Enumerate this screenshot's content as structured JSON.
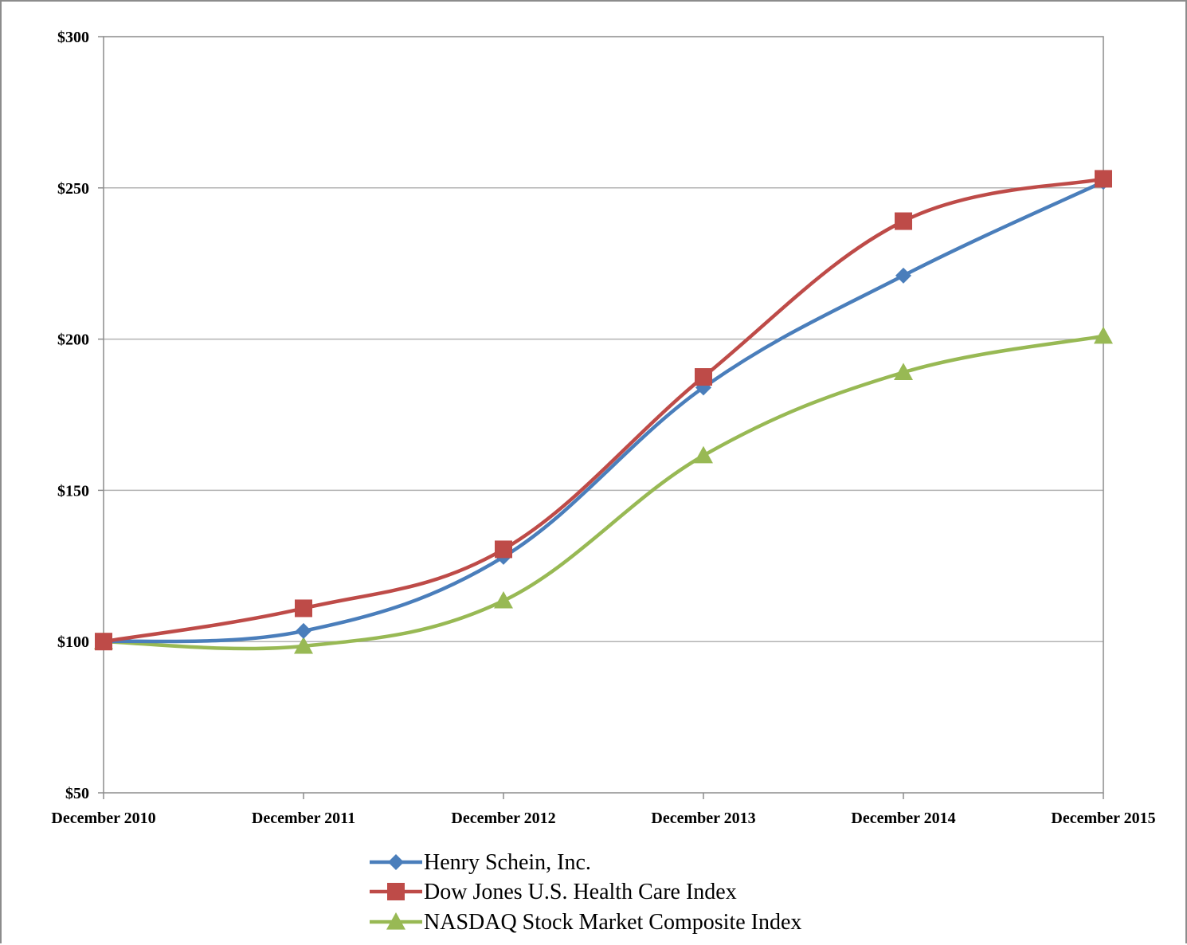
{
  "chart_data": {
    "type": "line",
    "categories": [
      "December 2010",
      "December 2011",
      "December 2012",
      "December 2013",
      "December 2014",
      "December 2015"
    ],
    "y_tick_labels": [
      "$50",
      "$100",
      "$150",
      "$200",
      "$250",
      "$300"
    ],
    "y_ticks": [
      50,
      100,
      150,
      200,
      250,
      300
    ],
    "ylim": [
      50,
      300
    ],
    "grid": true,
    "legend_position": "bottom",
    "title": "",
    "xlabel": "",
    "ylabel": "",
    "series": [
      {
        "name": "Henry Schein, Inc.",
        "color": "#4a7ebb",
        "marker": "diamond",
        "values": [
          100,
          103.5,
          128,
          184,
          221,
          252
        ]
      },
      {
        "name": "Dow Jones U.S. Health Care Index",
        "color": "#be4b48",
        "marker": "square",
        "values": [
          100,
          111,
          130.5,
          187.5,
          239,
          253
        ]
      },
      {
        "name": "NASDAQ Stock Market Composite Index",
        "color": "#98b954",
        "marker": "triangle",
        "values": [
          100,
          98.5,
          113.5,
          161.5,
          189,
          201
        ]
      }
    ]
  }
}
